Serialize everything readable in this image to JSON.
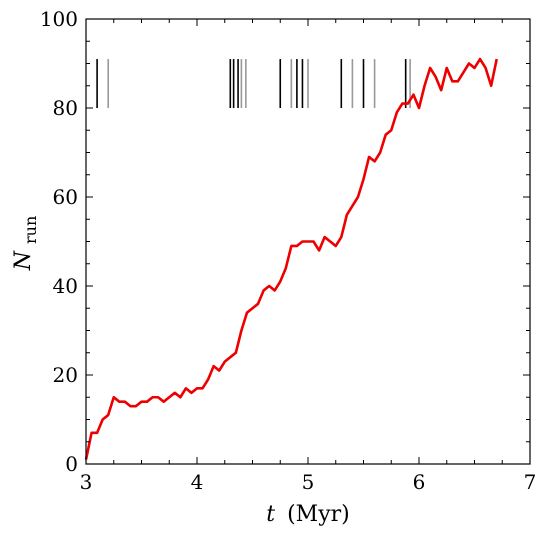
{
  "chart_data": {
    "type": "line",
    "xlabel_var": "t",
    "xlabel_unit": "(Myr)",
    "ylabel_var": "N",
    "ylabel_sub": "run",
    "xlim": [
      3,
      7
    ],
    "ylim": [
      0,
      100
    ],
    "xticks": [
      3,
      4,
      5,
      6,
      7
    ],
    "yticks": [
      0,
      20,
      40,
      60,
      80,
      100
    ],
    "grid": false,
    "line_color": "#ee0000",
    "series": [
      {
        "x": [
          3.0,
          3.05,
          3.1,
          3.15,
          3.2,
          3.25,
          3.3,
          3.35,
          3.4,
          3.45,
          3.5,
          3.55,
          3.6,
          3.65,
          3.7,
          3.75,
          3.8,
          3.85,
          3.9,
          3.95,
          4.0,
          4.05,
          4.1,
          4.15,
          4.2,
          4.25,
          4.3,
          4.35,
          4.4,
          4.45,
          4.5,
          4.55,
          4.6,
          4.65,
          4.7,
          4.75,
          4.8,
          4.85,
          4.9,
          4.95,
          5.0,
          5.05,
          5.1,
          5.15,
          5.2,
          5.25,
          5.3,
          5.35,
          5.4,
          5.45,
          5.5,
          5.55,
          5.6,
          5.65,
          5.7,
          5.75,
          5.8,
          5.85,
          5.9,
          5.95,
          6.0,
          6.05,
          6.1,
          6.15,
          6.2,
          6.25,
          6.3,
          6.35,
          6.4,
          6.45,
          6.5,
          6.55,
          6.6,
          6.65,
          6.7
        ],
        "y": [
          1,
          7,
          7,
          10,
          11,
          15,
          14,
          14,
          13,
          13,
          14,
          14,
          15,
          15,
          14,
          15,
          16,
          15,
          17,
          16,
          17,
          17,
          19,
          22,
          21,
          23,
          24,
          25,
          30,
          34,
          35,
          36,
          39,
          40,
          39,
          41,
          44,
          49,
          49,
          50,
          50,
          50,
          48,
          51,
          50,
          49,
          51,
          56,
          58,
          60,
          64,
          69,
          68,
          70,
          74,
          75,
          79,
          81,
          81,
          83,
          80,
          85,
          89,
          87,
          84,
          89,
          86,
          86,
          88,
          90,
          89,
          91,
          89,
          85,
          91
        ]
      }
    ],
    "event_marks_black": [
      3.1,
      4.3,
      4.33,
      4.37,
      4.75,
      4.9,
      4.95,
      5.3,
      5.5,
      5.88
    ],
    "event_marks_gray": [
      3.2,
      4.4,
      4.44,
      4.85,
      5.0,
      5.4,
      5.6,
      5.92
    ]
  }
}
